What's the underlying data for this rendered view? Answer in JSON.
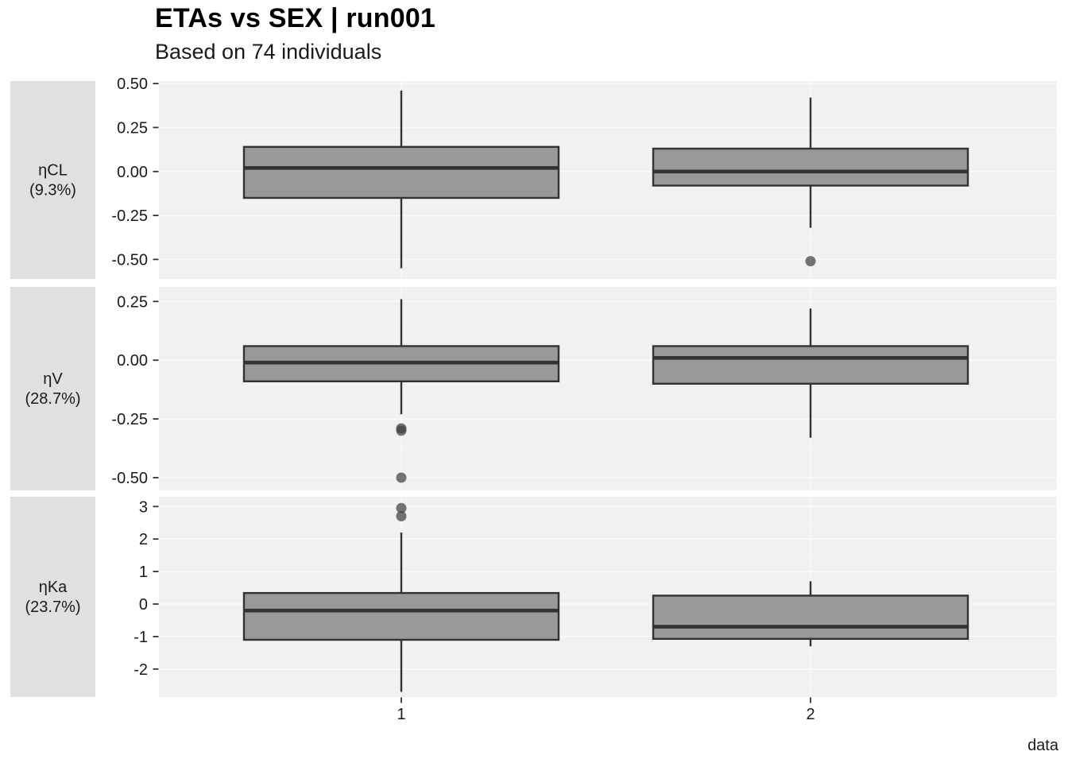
{
  "chart_data": {
    "type": "boxplot",
    "title": "ETAs vs SEX | run001",
    "subtitle": "Based on 74 individuals",
    "x_axis_label": "data",
    "x_categories": [
      "1",
      "2"
    ],
    "legend": "none",
    "grid": "major and minor horizontal white gridlines, vertical gridline at each category",
    "facets": "3 horizontal panels sharing x axis, strip labels on left",
    "panels": [
      {
        "strip_label": "ηCL",
        "strip_sublabel": "(9.3%)",
        "y_ticks": [
          "0.50",
          "0.25",
          "0.00",
          "-0.25",
          "-0.50"
        ],
        "y_range": [
          -0.611,
          0.514
        ],
        "boxes": [
          {
            "category": "1",
            "whisker_low": -0.55,
            "q1": -0.15,
            "median": 0.02,
            "q3": 0.14,
            "whisker_high": 0.46,
            "outliers": []
          },
          {
            "category": "2",
            "whisker_low": -0.32,
            "q1": -0.08,
            "median": 0.0,
            "q3": 0.13,
            "whisker_high": 0.42,
            "outliers": [
              -0.51
            ]
          }
        ]
      },
      {
        "strip_label": "ηV",
        "strip_sublabel": "(28.7%)",
        "y_ticks": [
          "0.25",
          "0.00",
          "-0.25",
          "-0.50"
        ],
        "y_range": [
          -0.554,
          0.312
        ],
        "boxes": [
          {
            "category": "1",
            "whisker_low": -0.23,
            "q1": -0.09,
            "median": -0.01,
            "q3": 0.06,
            "whisker_high": 0.26,
            "outliers": [
              -0.29,
              -0.3,
              -0.5
            ]
          },
          {
            "category": "2",
            "whisker_low": -0.33,
            "q1": -0.1,
            "median": 0.01,
            "q3": 0.06,
            "whisker_high": 0.22,
            "outliers": []
          }
        ]
      },
      {
        "strip_label": "ηKa",
        "strip_sublabel": "(23.7%)",
        "y_ticks": [
          "3",
          "2",
          "1",
          "0",
          "-1",
          "-2"
        ],
        "y_range": [
          -2.86,
          3.3
        ],
        "boxes": [
          {
            "category": "1",
            "whisker_low": -2.7,
            "q1": -1.1,
            "median": -0.2,
            "q3": 0.34,
            "whisker_high": 2.2,
            "outliers": [
              2.95,
              2.7
            ]
          },
          {
            "category": "2",
            "whisker_low": -1.3,
            "q1": -1.07,
            "median": -0.7,
            "q3": 0.26,
            "whisker_high": 0.7,
            "outliers": []
          }
        ]
      }
    ],
    "colors": {
      "background": "#ffffff",
      "panel_background": "#f1f1f1",
      "strip_background": "#e0e0e0",
      "grid_major": "#fbfbfb",
      "grid_minor": "#f6f6f6",
      "box_fill": "#999999",
      "box_stroke": "#333333",
      "outlier": "#404040",
      "text": "#1a1a1a"
    }
  }
}
